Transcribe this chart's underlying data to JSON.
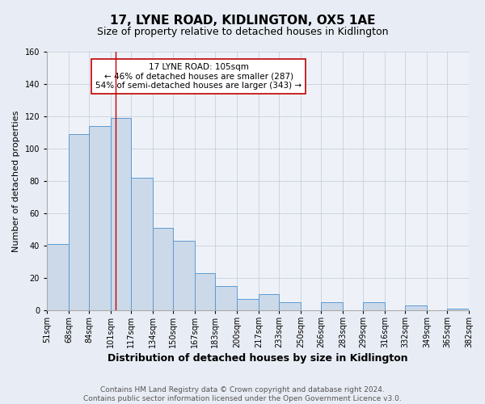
{
  "title": "17, LYNE ROAD, KIDLINGTON, OX5 1AE",
  "subtitle": "Size of property relative to detached houses in Kidlington",
  "xlabel": "Distribution of detached houses by size in Kidlington",
  "ylabel": "Number of detached properties",
  "footer_line1": "Contains HM Land Registry data © Crown copyright and database right 2024.",
  "footer_line2": "Contains public sector information licensed under the Open Government Licence v3.0.",
  "bin_labels": [
    "51sqm",
    "68sqm",
    "84sqm",
    "101sqm",
    "117sqm",
    "134sqm",
    "150sqm",
    "167sqm",
    "183sqm",
    "200sqm",
    "217sqm",
    "233sqm",
    "250sqm",
    "266sqm",
    "283sqm",
    "299sqm",
    "316sqm",
    "332sqm",
    "349sqm",
    "365sqm",
    "382sqm"
  ],
  "bar_values": [
    41,
    109,
    114,
    119,
    82,
    51,
    43,
    23,
    15,
    7,
    10,
    5,
    0,
    5,
    0,
    5,
    0,
    3,
    0,
    1
  ],
  "bin_edges": [
    51,
    68,
    84,
    101,
    117,
    134,
    150,
    167,
    183,
    200,
    217,
    233,
    250,
    266,
    283,
    299,
    316,
    332,
    349,
    365,
    382
  ],
  "bar_facecolor": "#ccd9e8",
  "bar_edgecolor": "#5b9bd5",
  "vline_x": 105,
  "vline_color": "#c00000",
  "annotation_title": "17 LYNE ROAD: 105sqm",
  "annotation_line1": "← 46% of detached houses are smaller (287)",
  "annotation_line2": "54% of semi-detached houses are larger (343) →",
  "annotation_box_edgecolor": "#c00000",
  "annotation_box_facecolor": "#ffffff",
  "ylim": [
    0,
    160
  ],
  "yticks": [
    0,
    20,
    40,
    60,
    80,
    100,
    120,
    140,
    160
  ],
  "grid_color": "#c8d0dc",
  "background_color": "#e8ecf4",
  "plot_background": "#eef2f8",
  "title_fontsize": 11,
  "subtitle_fontsize": 9,
  "xlabel_fontsize": 9,
  "ylabel_fontsize": 8,
  "tick_fontsize": 7,
  "annot_fontsize": 7.5,
  "footer_fontsize": 6.5
}
